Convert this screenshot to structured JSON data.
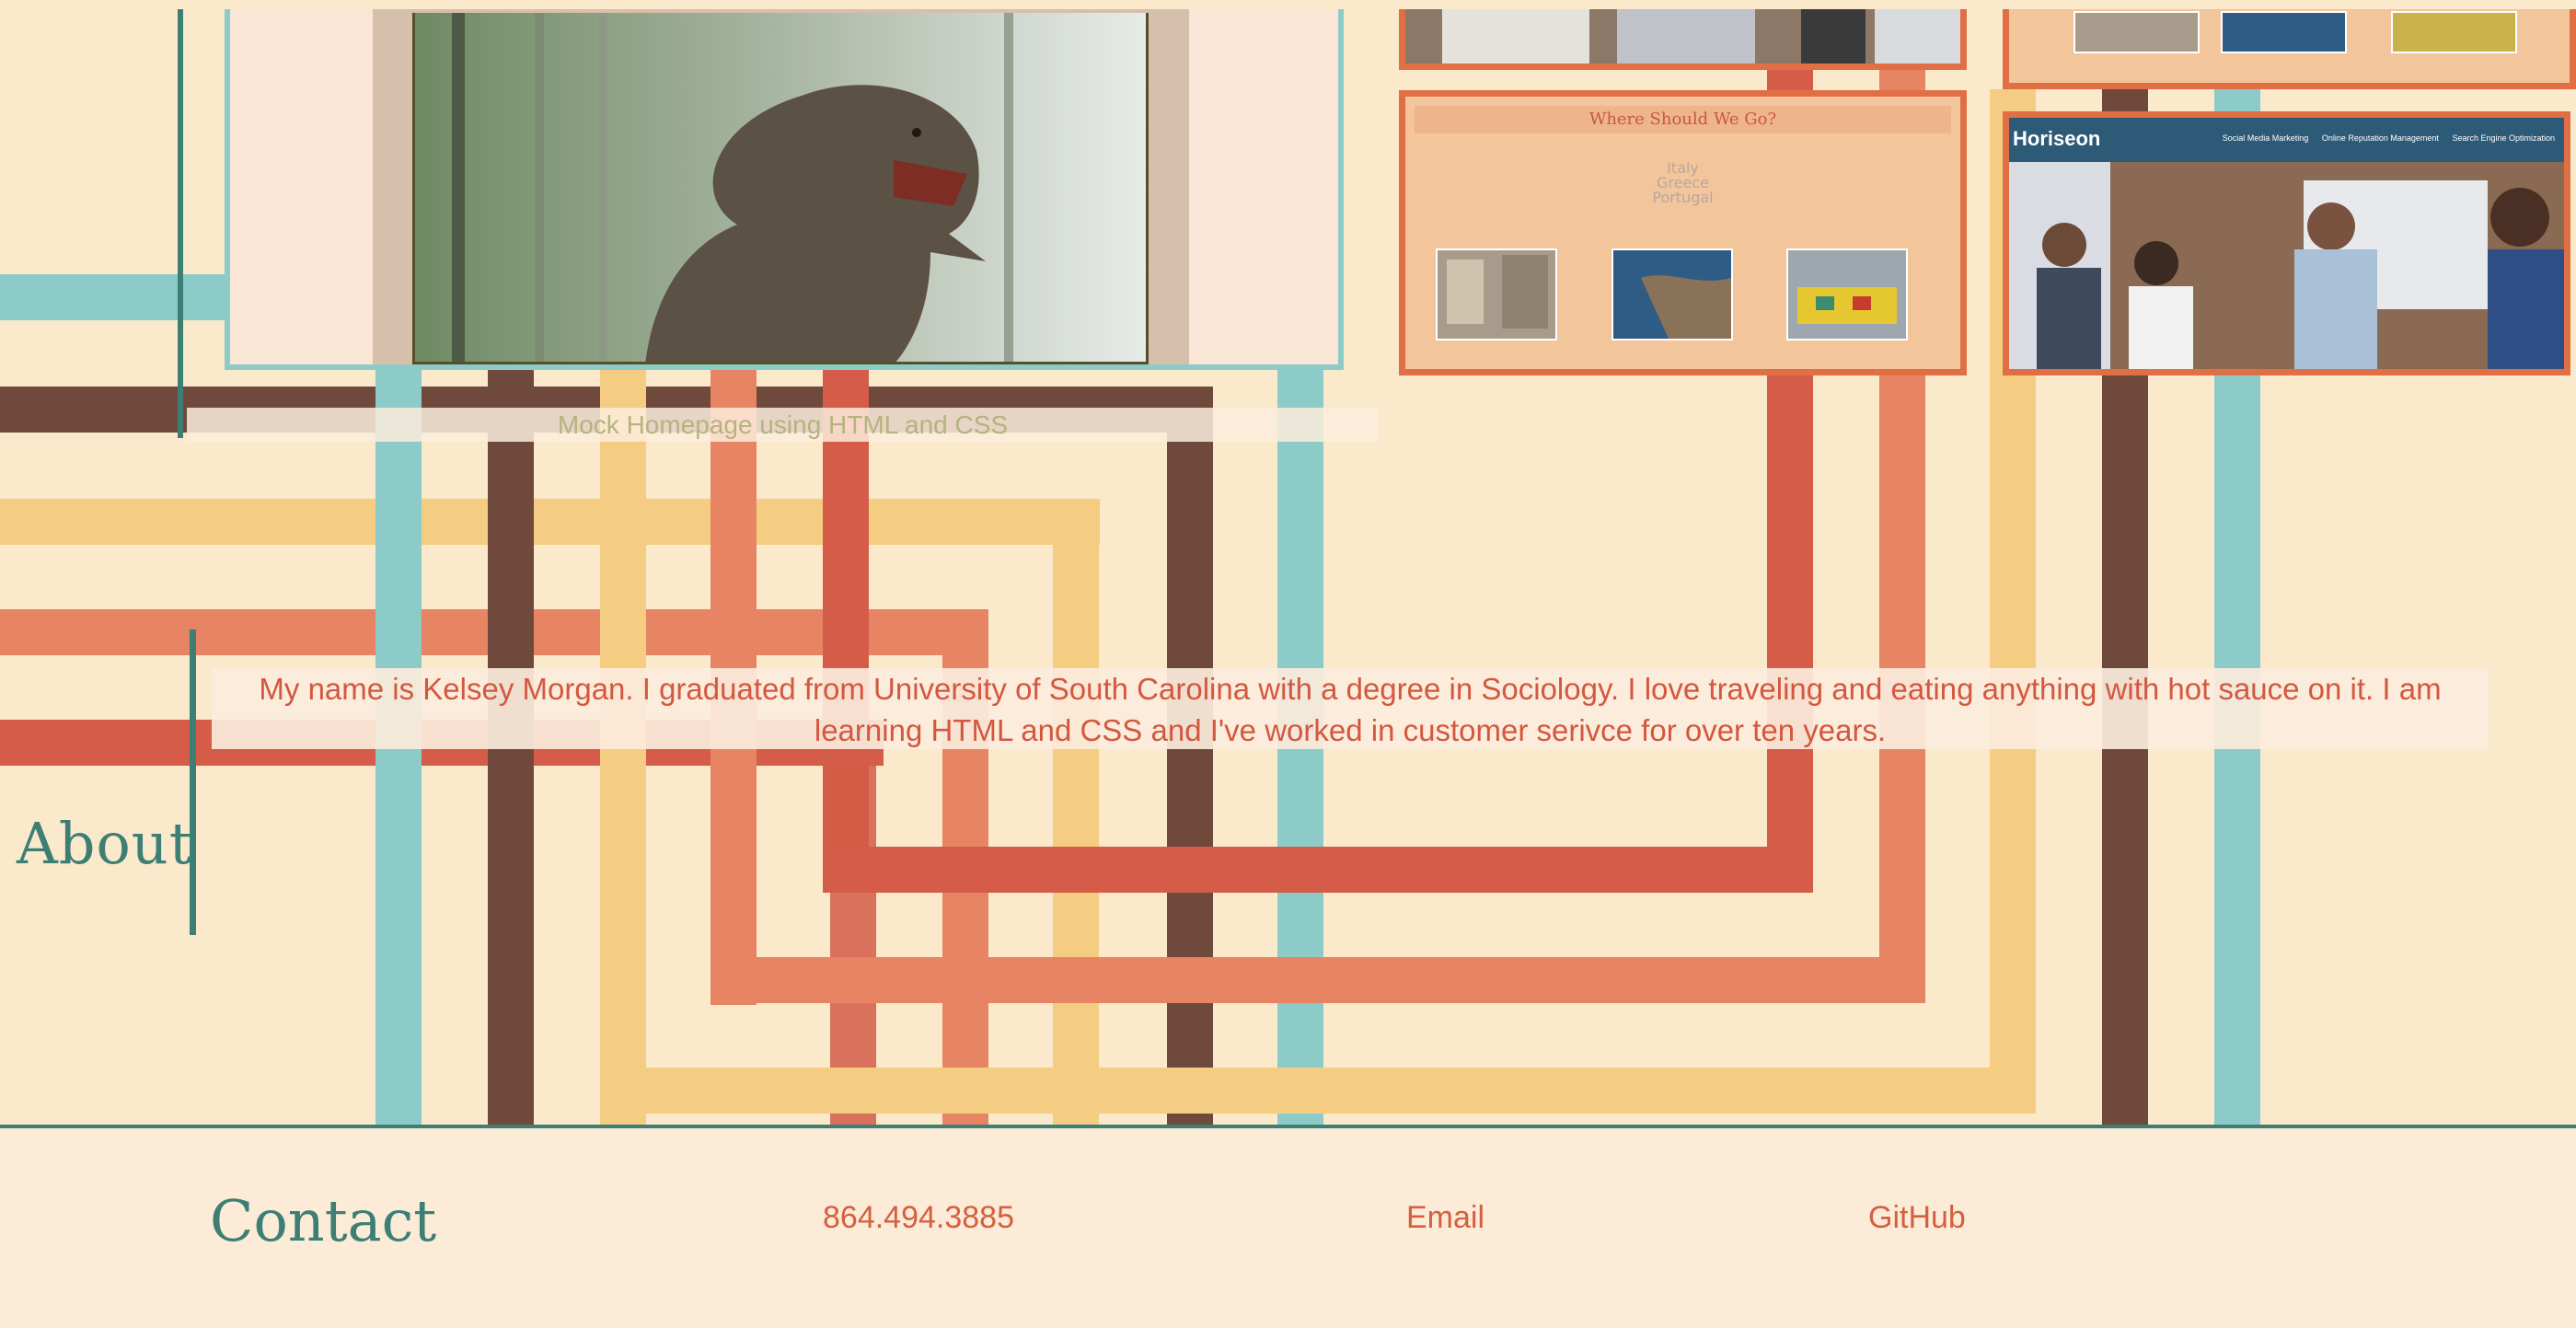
{
  "projects": {
    "where": {
      "heading": "Where Should We Go?",
      "destinations": [
        "Italy",
        "Greece",
        "Portugal"
      ]
    },
    "horiseon": {
      "brand": "Horiseon",
      "nav": [
        "Social Media Marketing",
        "Online Reputation Management",
        "Search Engine Optimization"
      ]
    },
    "caption": "Mock Homepage using HTML and CSS"
  },
  "about": {
    "title": "About",
    "text": "My name is Kelsey Morgan. I graduated from University of South Carolina with a degree in Sociology. I love traveling and eating anything with hot sauce on it. I am learning HTML and CSS and I've worked in customer serivce for over ten years."
  },
  "contact": {
    "title": "Contact",
    "phone": "864.494.3885",
    "email_label": "Email",
    "github_label": "GitHub"
  },
  "colors": {
    "background": "#fbe9cc",
    "teal": "#8ccbc8",
    "brown": "#6f4a3c",
    "yellow": "#f4cc82",
    "coral": "#e68463",
    "red": "#d45c48",
    "dark_teal": "#3d7f75",
    "card_border": "#e06f45"
  }
}
